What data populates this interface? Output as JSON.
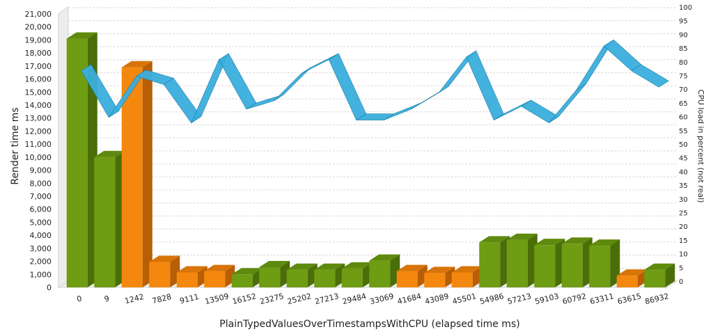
{
  "chart_data": {
    "type": "bar",
    "xlabel": "PlainTypedValuesOverTimestampsWithCPU (elapsed time ms)",
    "ylabel": "Render time ms",
    "y2label": "CPU load in percent (not real)",
    "ylim": [
      0,
      21000
    ],
    "y2lim": [
      0,
      100
    ],
    "yticks": [
      "0",
      "1,000",
      "2,000",
      "3,000",
      "4,000",
      "5,000",
      "6,000",
      "7,000",
      "8,000",
      "9,000",
      "10,000",
      "11,000",
      "12,000",
      "13,000",
      "14,000",
      "15,000",
      "16,000",
      "17,000",
      "18,000",
      "19,000",
      "20,000",
      "21,000"
    ],
    "y2ticks": [
      "0",
      "5",
      "10",
      "15",
      "20",
      "25",
      "30",
      "35",
      "40",
      "45",
      "50",
      "55",
      "60",
      "65",
      "70",
      "75",
      "80",
      "85",
      "90",
      "95",
      "100"
    ],
    "categories": [
      "0",
      "9",
      "1242",
      "7828",
      "9111",
      "13509",
      "16152",
      "23275",
      "25202",
      "27213",
      "29484",
      "33069",
      "41684",
      "43089",
      "45501",
      "54986",
      "57213",
      "59103",
      "60792",
      "63311",
      "63615",
      "86932"
    ],
    "series": [
      {
        "render_time": [
          19100,
          10000,
          16900,
          1950,
          1150,
          1250,
          1000,
          1550,
          1350,
          1350,
          1450,
          2050,
          1250,
          1100,
          1150,
          3450,
          3650,
          3250,
          3350,
          3200,
          900,
          1350
        ],
        "bar_colors": [
          "green",
          "green",
          "orange",
          "orange",
          "orange",
          "orange",
          "green",
          "green",
          "green",
          "green",
          "green",
          "green",
          "orange",
          "orange",
          "orange",
          "green",
          "green",
          "green",
          "green",
          "green",
          "orange",
          "green"
        ]
      },
      {
        "cpu_load": [
          78,
          61,
          76,
          73,
          59,
          82,
          64,
          67,
          77,
          82,
          60,
          60,
          64,
          70,
          83,
          60,
          65,
          59,
          71,
          87,
          78,
          72
        ]
      }
    ],
    "grid": true,
    "colors": {
      "green": "#6e9c12",
      "green_top": "#5e8a0d",
      "green_side": "#4a6e08",
      "orange": "#f4880f",
      "orange_top": "#d87408",
      "orange_side": "#b85e04",
      "ribbon": "#3aaedc",
      "ribbon_dark": "#1c7ea6"
    }
  }
}
